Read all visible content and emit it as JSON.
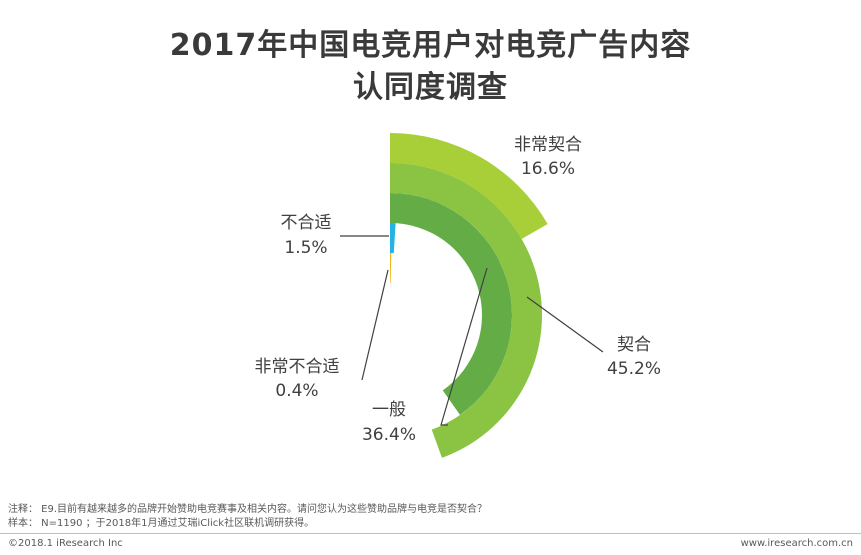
{
  "title": {
    "line1": "2017年中国电竞用户对电竞广告内容",
    "line2": "认同度调查"
  },
  "chart_data": {
    "type": "pie",
    "variant": "half radial rings",
    "categories": [
      "非常契合",
      "契合",
      "一般",
      "不合适",
      "非常不合适"
    ],
    "values": [
      16.6,
      45.2,
      36.4,
      1.5,
      0.4
    ],
    "labels": [
      {
        "name": "非常契合",
        "value": "16.6%"
      },
      {
        "name": "契合",
        "value": "45.2%"
      },
      {
        "name": "一般",
        "value": "36.4%"
      },
      {
        "name": "不合适",
        "value": "1.5%"
      },
      {
        "name": "非常不合适",
        "value": "0.4%"
      }
    ],
    "colors": [
      "#a9cf38",
      "#8bc443",
      "#64ad46",
      "#27b2e6",
      "#f2b81a"
    ]
  },
  "notes": {
    "line1": "注释： E9.目前有越来越多的品牌开始赞助电竞赛事及相关内容。请问您认为这些赞助品牌与电竞是否契合？",
    "line2": "样本： N=1190 ；于2018年1月通过艾瑞iClick社区联机调研获得。"
  },
  "footer": {
    "left": "©2018.1 iResearch Inc",
    "right": "www.iresearch.com.cn"
  }
}
